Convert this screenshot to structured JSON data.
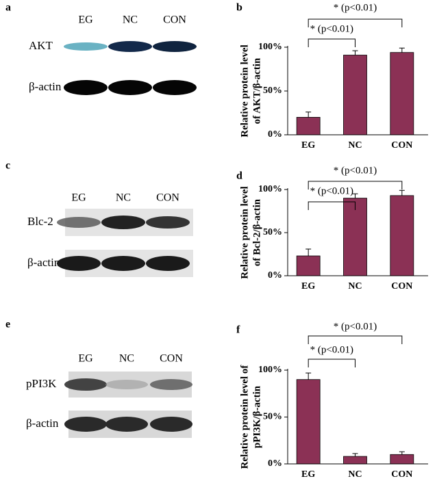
{
  "blots": [
    {
      "panel": "a",
      "lanes": [
        "EG",
        "NC",
        "CON"
      ],
      "rows": [
        "AKT",
        "β-actin"
      ]
    },
    {
      "panel": "c",
      "lanes": [
        "EG",
        "NC",
        "CON"
      ],
      "rows": [
        "Blc-2",
        "β-actin"
      ]
    },
    {
      "panel": "e",
      "lanes": [
        "EG",
        "NC",
        "CON"
      ],
      "rows": [
        "pPI3K",
        "β-actin"
      ]
    }
  ],
  "chart_data": [
    {
      "type": "bar",
      "panel": "b",
      "ylabel": [
        "Relative protein level",
        "of AKT/β-actin"
      ],
      "categories": [
        "EG",
        "NC",
        "CON"
      ],
      "values": [
        20,
        91,
        94
      ],
      "errors": [
        6,
        5,
        5
      ],
      "color": "#8b3155",
      "ylim": [
        0,
        100
      ],
      "yticks": [
        {
          "value": 0,
          "label": "0%"
        },
        {
          "value": 50,
          "label": "50%"
        },
        {
          "value": 100,
          "label": "100%"
        }
      ],
      "annotations": [
        "* (p<0.01)",
        "* (p<0.01)"
      ]
    },
    {
      "type": "bar",
      "panel": "d",
      "ylabel": [
        "Relative protein level",
        "of Bcl-2/β-actin"
      ],
      "categories": [
        "EG",
        "NC",
        "CON"
      ],
      "values": [
        23,
        90,
        93
      ],
      "errors": [
        8,
        5,
        6
      ],
      "color": "#8b3155",
      "ylim": [
        0,
        100
      ],
      "yticks": [
        {
          "value": 0,
          "label": "0%"
        },
        {
          "value": 50,
          "label": "50%"
        },
        {
          "value": 100,
          "label": "100%"
        }
      ],
      "annotations": [
        "* (p<0.01)",
        "* (p<0.01)"
      ]
    },
    {
      "type": "bar",
      "panel": "f",
      "ylabel": [
        "Relative protein level of",
        "pPI3K/β-actin"
      ],
      "categories": [
        "EG",
        "NC",
        "CON"
      ],
      "values": [
        90,
        8,
        10
      ],
      "errors": [
        7,
        3,
        3
      ],
      "color": "#8b3155",
      "ylim": [
        0,
        100
      ],
      "yticks": [
        {
          "value": 0,
          "label": "0%"
        },
        {
          "value": 50,
          "label": "50%"
        },
        {
          "value": 100,
          "label": "100%"
        }
      ],
      "annotations": [
        "* (p<0.01)",
        "* (p<0.01)"
      ]
    }
  ]
}
